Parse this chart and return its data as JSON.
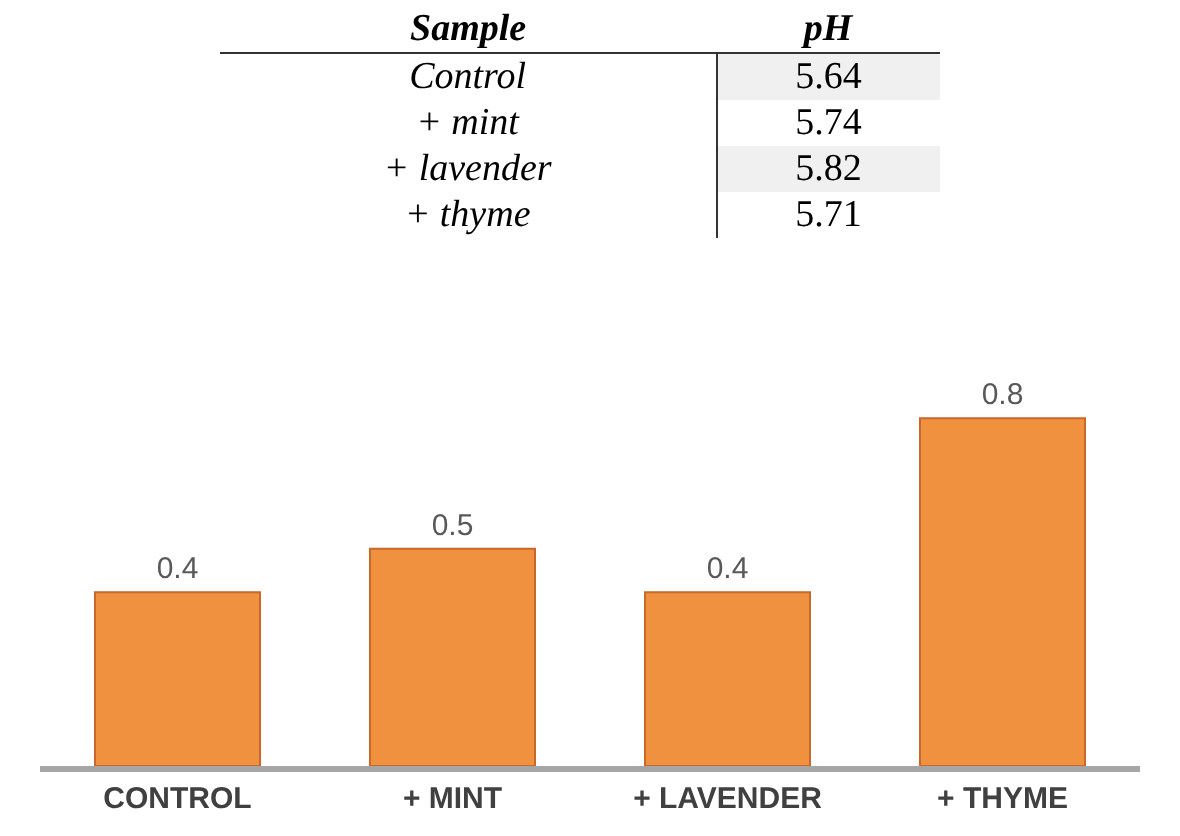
{
  "chart_data": [
    {
      "type": "other",
      "annotations": [
        "Sample",
        "pH",
        "Control",
        "5.64",
        "+ mint",
        "5.74",
        "+ lavender",
        "5.82",
        "+ thyme",
        "5.71"
      ]
    },
    {
      "type": "bar",
      "categories": [
        "CONTROL",
        "+ MINT",
        "+ LAVENDER",
        "+ THYME"
      ],
      "values": [
        0.4,
        0.5,
        0.4,
        0.8
      ],
      "color": "#f0913f",
      "data_labels": true,
      "grid": false,
      "legend": false
    }
  ]
}
